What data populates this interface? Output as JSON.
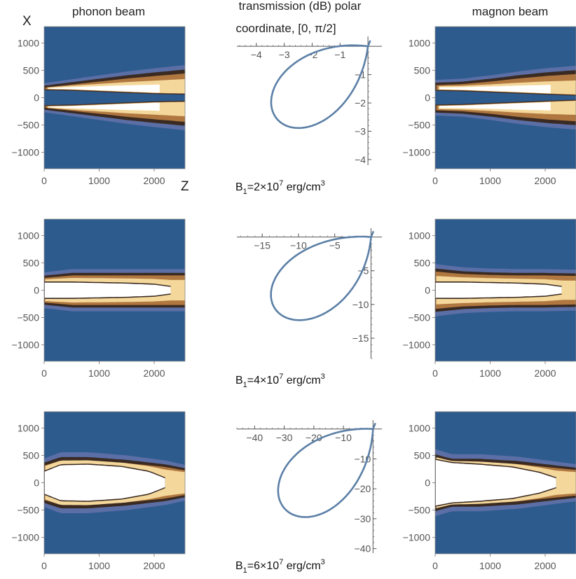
{
  "header": {
    "left": "phonon beam",
    "middle_line1": "transmission (dB) polar",
    "middle_line2": "coordinate,  [0, π/2]",
    "right": "magnon beam"
  },
  "axis_letters": {
    "x": "X",
    "z": "Z"
  },
  "colors": {
    "background": "#2e5b8e",
    "halo": "#5b6fa6",
    "contour_dark": "#3a2a22",
    "contour_mid": "#b07840",
    "contour_light": "#f4d79a",
    "core": "#ffffff",
    "curve": "#5b7fa6"
  },
  "chart_data": [
    {
      "type": "heatmap",
      "panel": "phonon",
      "row": 1,
      "title": "phonon beam",
      "xlabel": "Z",
      "ylabel": "X",
      "xlim": [
        0,
        2560
      ],
      "ylim": [
        -1300,
        1300
      ],
      "xticks": [
        0,
        1000,
        2000
      ],
      "yticks": [
        1000,
        500,
        0,
        -500,
        -1000
      ],
      "xtick_labels": [
        "0",
        "1000",
        "2000"
      ],
      "ytick_labels": [
        "1000",
        "500",
        "0",
        "−500",
        "−1000"
      ],
      "profile": {
        "hollow": true,
        "outer_z": [
          0,
          500,
          1000,
          1500,
          2000,
          2560
        ],
        "outer_x": [
          200,
          260,
          320,
          380,
          430,
          480
        ],
        "inner_z": [
          0,
          500,
          1000,
          1500,
          2000,
          2560
        ],
        "inner_x": [
          150,
          140,
          120,
          100,
          80,
          70
        ],
        "glow": 0.7
      }
    },
    {
      "type": "line",
      "panel": "polar",
      "row": 1,
      "title": "transmission (dB) polar coordinate, [0, π/2]",
      "xlim": [
        -4.7,
        0.5
      ],
      "ylim": [
        -4.2,
        0.35
      ],
      "xticks": [
        -4,
        -3,
        -2,
        -1
      ],
      "yticks": [
        -1,
        -2,
        -3,
        -4
      ],
      "xtick_labels": [
        "−4",
        "−3",
        "−2",
        "−1"
      ],
      "ytick_labels": [
        "−1",
        "−2",
        "−3",
        "−4"
      ],
      "scale": 4.15,
      "theta_range": [
        0,
        1.5708
      ],
      "angle_offset": 0.13,
      "caption_base": "B",
      "caption_sub": "1",
      "caption_mid": "=2×10",
      "caption_exp": "7",
      "caption_unit": " erg/cm",
      "caption_unit_exp": "3"
    },
    {
      "type": "heatmap",
      "panel": "magnon",
      "row": 1,
      "title": "magnon beam",
      "xlim": [
        0,
        2560
      ],
      "ylim": [
        -1300,
        1300
      ],
      "xticks": [
        0,
        1000,
        2000
      ],
      "yticks": [
        1000,
        500,
        0,
        -500,
        -1000
      ],
      "xtick_labels": [
        "0",
        "1000",
        "2000"
      ],
      "ytick_labels": [
        "1000",
        "500",
        "0",
        "−500",
        "−1000"
      ],
      "profile": {
        "hollow": true,
        "outer_z": [
          0,
          500,
          1000,
          1500,
          2000,
          2560
        ],
        "outer_x": [
          250,
          270,
          320,
          380,
          430,
          470
        ],
        "inner_z": [
          0,
          500,
          1000,
          1500,
          2000,
          2560
        ],
        "inner_x": [
          140,
          130,
          110,
          90,
          70,
          50
        ],
        "glow": 0.55
      }
    },
    {
      "type": "heatmap",
      "panel": "phonon",
      "row": 2,
      "xlim": [
        0,
        2560
      ],
      "ylim": [
        -1300,
        1300
      ],
      "xticks": [
        0,
        1000,
        2000
      ],
      "yticks": [
        1000,
        500,
        0,
        -500,
        -1000
      ],
      "xtick_labels": [
        "0",
        "1000",
        "2000"
      ],
      "ytick_labels": [
        "1000",
        "500",
        "0",
        "−500",
        "−1000"
      ],
      "profile": {
        "hollow": false,
        "outer_z": [
          0,
          500,
          1000,
          1500,
          2000,
          2560
        ],
        "outer_x": [
          250,
          300,
          300,
          300,
          300,
          300
        ],
        "core_z": [
          0,
          500,
          1000,
          1500,
          2000,
          2300
        ],
        "core_x": [
          140,
          140,
          130,
          120,
          100,
          60
        ],
        "glow": 0.6
      }
    },
    {
      "type": "line",
      "panel": "polar",
      "row": 2,
      "xlim": [
        -18.5,
        1.5
      ],
      "ylim": [
        -18,
        1.3
      ],
      "xticks": [
        -15,
        -10,
        -5
      ],
      "yticks": [
        -5,
        -10,
        -15
      ],
      "xtick_labels": [
        "−15",
        "−10",
        "−5"
      ],
      "ytick_labels": [
        "−5",
        "−10",
        "−15"
      ],
      "scale": 17.0,
      "theta_range": [
        0,
        1.5708
      ],
      "angle_offset": 0.08,
      "caption_base": "B",
      "caption_sub": "1",
      "caption_mid": "=4×10",
      "caption_exp": "7",
      "caption_unit": " erg/cm",
      "caption_unit_exp": "3"
    },
    {
      "type": "heatmap",
      "panel": "magnon",
      "row": 2,
      "xlim": [
        0,
        2560
      ],
      "ylim": [
        -1300,
        1300
      ],
      "xticks": [
        0,
        1000,
        2000
      ],
      "yticks": [
        1000,
        500,
        0,
        -500,
        -1000
      ],
      "xtick_labels": [
        "0",
        "1000",
        "2000"
      ],
      "ytick_labels": [
        "1000",
        "500",
        "0",
        "−500",
        "−1000"
      ],
      "profile": {
        "hollow": false,
        "outer_z": [
          0,
          500,
          1000,
          1500,
          2000,
          2560
        ],
        "outer_x": [
          380,
          330,
          310,
          300,
          300,
          290
        ],
        "core_z": [
          0,
          500,
          1000,
          1500,
          2000,
          2300
        ],
        "core_x": [
          140,
          140,
          130,
          120,
          100,
          60
        ],
        "glow": 0.55
      }
    },
    {
      "type": "heatmap",
      "panel": "phonon",
      "row": 3,
      "xlim": [
        0,
        2560
      ],
      "ylim": [
        -1300,
        1300
      ],
      "xticks": [
        0,
        1000,
        2000
      ],
      "yticks": [
        1000,
        500,
        0,
        -500,
        -1000
      ],
      "xtick_labels": [
        "0",
        "1000",
        "2000"
      ],
      "ytick_labels": [
        "1000",
        "500",
        "0",
        "−500",
        "−1000"
      ],
      "profile": {
        "hollow": false,
        "outer_z": [
          0,
          300,
          800,
          1500,
          2200,
          2560
        ],
        "outer_x": [
          350,
          450,
          450,
          400,
          320,
          250
        ],
        "core_z": [
          0,
          300,
          800,
          1400,
          1900,
          2200
        ],
        "core_x": [
          200,
          320,
          330,
          290,
          200,
          80
        ],
        "glow": 0.85
      }
    },
    {
      "type": "line",
      "panel": "polar",
      "row": 3,
      "xlim": [
        -46,
        3
      ],
      "ylim": [
        -41.5,
        3
      ],
      "xticks": [
        -40,
        -30,
        -20,
        -10
      ],
      "yticks": [
        -10,
        -20,
        -30,
        -40
      ],
      "xtick_labels": [
        "−40",
        "−30",
        "−20",
        "−10"
      ],
      "ytick_labels": [
        "−10",
        "−20",
        "−30",
        "−40"
      ],
      "scale": 40.0,
      "theta_range": [
        0,
        1.5708
      ],
      "angle_offset": 0.06,
      "caption_base": "B",
      "caption_sub": "1",
      "caption_mid": "=6×10",
      "caption_exp": "7",
      "caption_unit": " erg/cm",
      "caption_unit_exp": "3"
    },
    {
      "type": "heatmap",
      "panel": "magnon",
      "row": 3,
      "xlim": [
        0,
        2560
      ],
      "ylim": [
        -1300,
        1300
      ],
      "xticks": [
        0,
        1000,
        2000
      ],
      "yticks": [
        1000,
        500,
        0,
        -500,
        -1000
      ],
      "xtick_labels": [
        "0",
        "1000",
        "2000"
      ],
      "ytick_labels": [
        "1000",
        "500",
        "0",
        "−500",
        "−1000"
      ],
      "profile": {
        "hollow": false,
        "outer_z": [
          0,
          300,
          800,
          1500,
          2200,
          2560
        ],
        "outer_x": [
          500,
          420,
          420,
          380,
          300,
          260
        ],
        "core_z": [
          0,
          300,
          800,
          1400,
          1900,
          2200
        ],
        "core_x": [
          420,
          360,
          330,
          280,
          180,
          80
        ],
        "glow": 0.8
      }
    }
  ]
}
